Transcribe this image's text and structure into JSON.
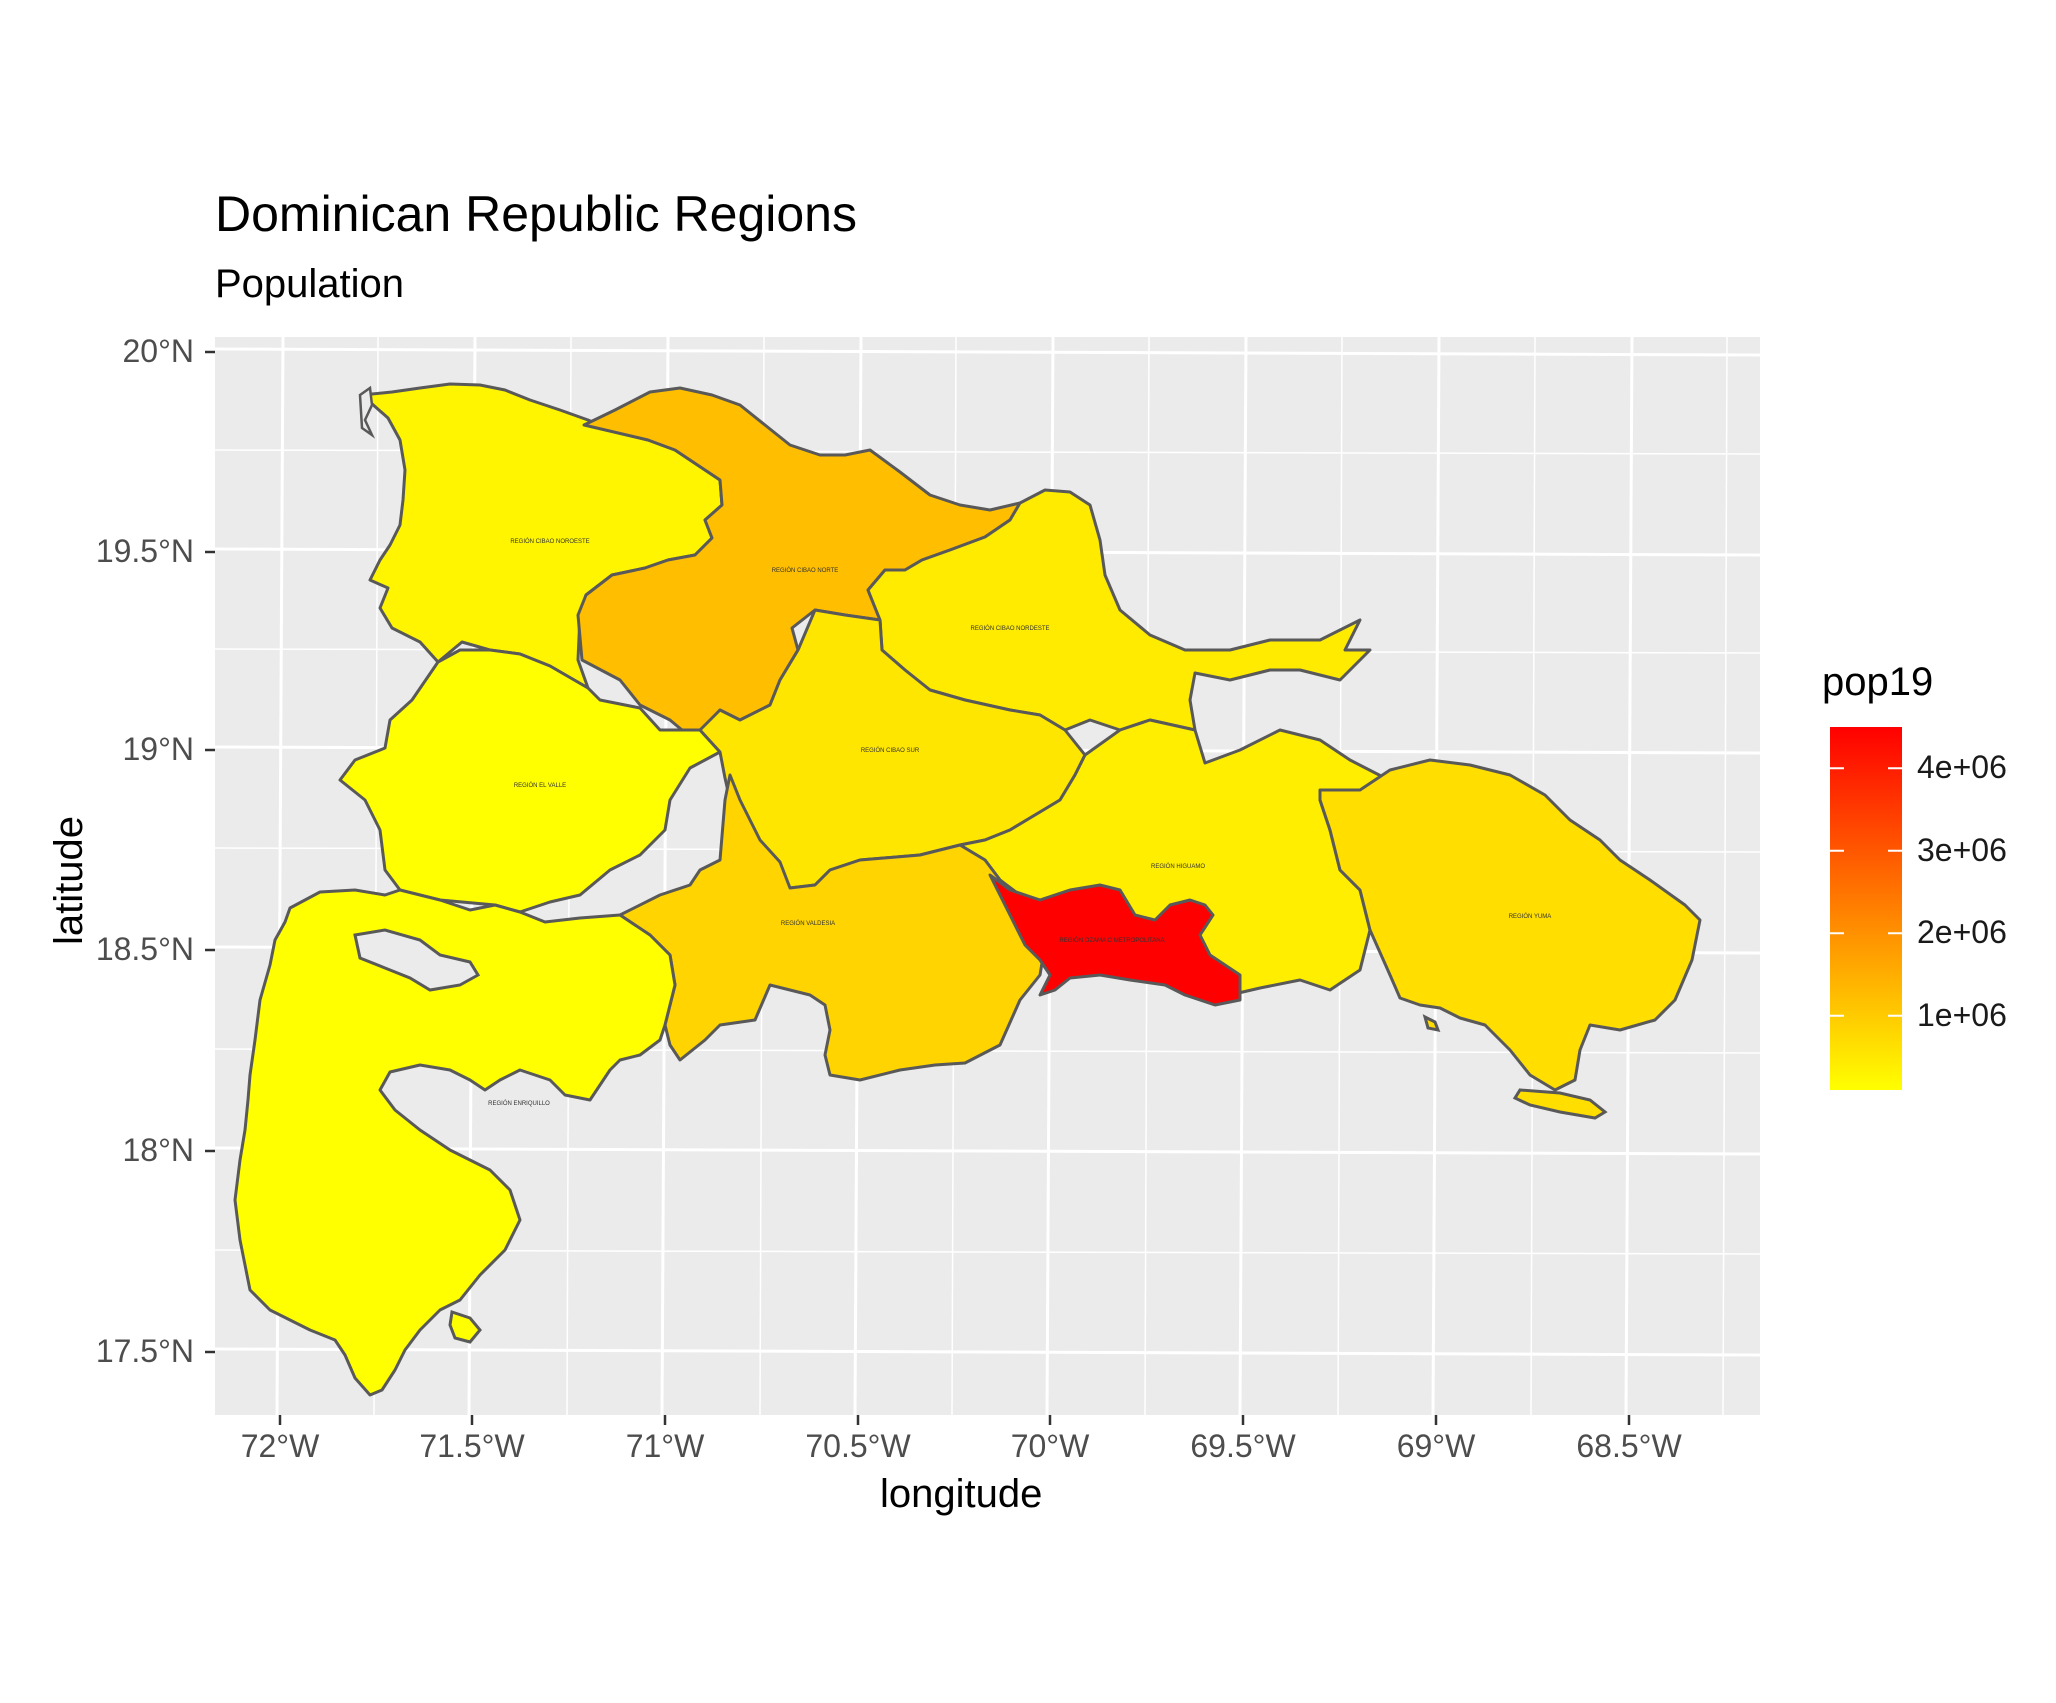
{
  "chart_data": {
    "type": "choropleth",
    "title": "Dominican Republic Regions",
    "subtitle": "Population",
    "xlabel": "longitude",
    "ylabel": "latitude",
    "x_ticks": [
      "72°W",
      "71.5°W",
      "71°W",
      "70.5°W",
      "70°W",
      "69.5°W",
      "69°W",
      "68.5°W"
    ],
    "y_ticks": [
      "17.5°N",
      "18°N",
      "18.5°N",
      "19°N",
      "19.5°N",
      "20°N"
    ],
    "xlim": [
      -72.17,
      -68.17
    ],
    "ylim": [
      17.35,
      20.02
    ],
    "legend": {
      "title": "pop19",
      "ticks": [
        "1e+06",
        "2e+06",
        "3e+06",
        "4e+06"
      ],
      "tick_values": [
        1000000,
        2000000,
        3000000,
        4000000
      ],
      "range": [
        100000,
        4500000
      ],
      "low_color": "#ffff00",
      "high_color": "#ff0000",
      "placement": "right"
    },
    "panel_background": "#ebebeb",
    "grid_color": "#ffffff",
    "border_color": "#595959",
    "regions": [
      {
        "name": "REGIÓN CIBAO NOROESTE",
        "pop19": 420000,
        "color": "#fff500"
      },
      {
        "name": "REGIÓN CIBAO NORTE",
        "pop19": 1650000,
        "color": "#ffbe00"
      },
      {
        "name": "REGIÓN CIBAO NORDESTE",
        "pop19": 650000,
        "color": "#ffeb00"
      },
      {
        "name": "REGIÓN EL VALLE",
        "pop19": 300000,
        "color": "#ffff00"
      },
      {
        "name": "REGIÓN CIBAO SUR",
        "pop19": 750000,
        "color": "#ffe600"
      },
      {
        "name": "REGIÓN HIGUAMO",
        "pop19": 600000,
        "color": "#ffee00"
      },
      {
        "name": "REGIÓN YUMA",
        "pop19": 1050000,
        "color": "#ffde00"
      },
      {
        "name": "REGIÓN VALDESIA",
        "pop19": 1100000,
        "color": "#ffd400"
      },
      {
        "name": "REGIÓN OZAMA O METROPOLITANA",
        "pop19": 4200000,
        "color": "#ff0000"
      },
      {
        "name": "REGIÓN ENRIQUILLO",
        "pop19": 380000,
        "color": "#ffff00"
      }
    ]
  }
}
